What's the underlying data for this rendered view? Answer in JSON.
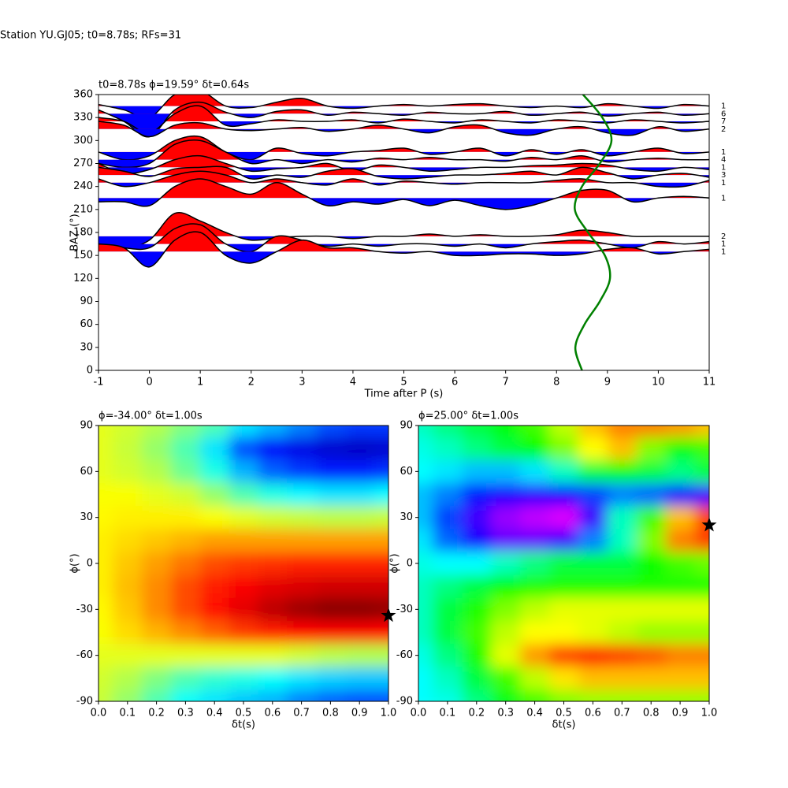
{
  "suptitle": "Station YU.GJ05; t0=8.78s; RFs=31",
  "chart_data": [
    {
      "type": "wiggle",
      "title": "t0=8.78s ϕ=19.59° δt=0.64s",
      "xlabel": "Time after P (s)",
      "ylabel": "BAZ (°)",
      "xlim": [
        -1,
        11
      ],
      "ylim": [
        0,
        360
      ],
      "xticks": [
        -1,
        0,
        1,
        2,
        3,
        4,
        5,
        6,
        7,
        8,
        9,
        10,
        11
      ],
      "yticks": [
        0,
        30,
        60,
        90,
        120,
        150,
        180,
        210,
        240,
        270,
        300,
        330,
        360
      ],
      "pos_color": "#ff0000",
      "neg_color": "#0000ff",
      "line_color": "#000000",
      "times": [
        -1,
        -0.5,
        0,
        0.5,
        1,
        1.5,
        2,
        2.5,
        3,
        3.5,
        4,
        4.5,
        5,
        5.5,
        6,
        6.5,
        7,
        7.5,
        8,
        8.5,
        9,
        9.5,
        10,
        10.5,
        11
      ],
      "traces": [
        {
          "baz": 345,
          "count": 1,
          "values": [
            2,
            -5,
            -15,
            15,
            20,
            0,
            -2,
            5,
            10,
            0,
            -3,
            0,
            2,
            0,
            2,
            3,
            0,
            -2,
            0,
            -2,
            3,
            0,
            -3,
            2,
            0
          ]
        },
        {
          "baz": 335,
          "count": 6,
          "values": [
            5,
            -10,
            -30,
            5,
            15,
            2,
            -5,
            3,
            5,
            -2,
            2,
            0,
            -2,
            2,
            0,
            0,
            3,
            -2,
            0,
            2,
            -3,
            0,
            2,
            -2,
            0
          ]
        },
        {
          "baz": 325,
          "count": 7,
          "values": [
            5,
            0,
            -15,
            10,
            20,
            -5,
            -3,
            2,
            0,
            0,
            2,
            -2,
            3,
            0,
            -2,
            2,
            0,
            -2,
            2,
            0,
            -2,
            2,
            0,
            -2,
            0
          ]
        },
        {
          "baz": 315,
          "count": 2,
          "values": [
            10,
            5,
            -10,
            5,
            8,
            0,
            -2,
            0,
            2,
            -3,
            0,
            5,
            0,
            -5,
            3,
            5,
            -5,
            -8,
            0,
            3,
            -5,
            -8,
            3,
            -3,
            0
          ]
        },
        {
          "baz": 285,
          "count": 1,
          "values": [
            0,
            -10,
            -5,
            15,
            20,
            0,
            -10,
            5,
            -2,
            -5,
            0,
            2,
            5,
            -3,
            0,
            5,
            -5,
            3,
            -3,
            3,
            -5,
            0,
            5,
            -2,
            0
          ]
        },
        {
          "baz": 275,
          "count": 4,
          "values": [
            -5,
            -10,
            -5,
            20,
            25,
            10,
            -5,
            0,
            -5,
            0,
            -3,
            2,
            0,
            3,
            0,
            0,
            -2,
            3,
            0,
            5,
            -3,
            0,
            2,
            0,
            0
          ]
        },
        {
          "baz": 265,
          "count": 1,
          "values": [
            5,
            -8,
            -3,
            10,
            15,
            5,
            -5,
            -2,
            0,
            5,
            -5,
            3,
            0,
            -5,
            -3,
            0,
            0,
            2,
            3,
            5,
            3,
            -3,
            -5,
            0,
            -3
          ]
        },
        {
          "baz": 255,
          "count": 3,
          "values": [
            10,
            5,
            -2,
            8,
            10,
            10,
            -5,
            0,
            -3,
            5,
            8,
            -2,
            -5,
            -3,
            0,
            0,
            2,
            5,
            0,
            10,
            3,
            -5,
            0,
            2,
            -3
          ]
        },
        {
          "baz": 245,
          "count": 1,
          "values": [
            5,
            -5,
            0,
            10,
            15,
            10,
            0,
            5,
            0,
            -3,
            5,
            -3,
            2,
            0,
            -2,
            0,
            0,
            0,
            3,
            5,
            0,
            0,
            -5,
            -5,
            3
          ]
        },
        {
          "baz": 225,
          "count": 1,
          "values": [
            -5,
            -5,
            -10,
            15,
            25,
            15,
            5,
            20,
            5,
            -10,
            -5,
            -8,
            -2,
            -10,
            -3,
            -10,
            -15,
            -10,
            0,
            10,
            10,
            -5,
            0,
            2,
            0
          ]
        },
        {
          "baz": 175,
          "count": 2,
          "values": [
            -10,
            -15,
            -5,
            30,
            20,
            5,
            -5,
            -2,
            0,
            0,
            -3,
            0,
            0,
            3,
            0,
            2,
            0,
            0,
            2,
            8,
            5,
            0,
            0,
            0,
            0
          ]
        },
        {
          "baz": 165,
          "count": 1,
          "values": [
            0,
            -5,
            -5,
            20,
            25,
            0,
            -10,
            10,
            5,
            -3,
            0,
            -3,
            0,
            0,
            -3,
            0,
            -5,
            0,
            3,
            5,
            0,
            -5,
            3,
            0,
            3
          ]
        },
        {
          "baz": 155,
          "count": 1,
          "values": [
            10,
            5,
            -20,
            15,
            25,
            -5,
            -15,
            0,
            15,
            5,
            5,
            0,
            -2,
            0,
            -5,
            -5,
            -3,
            -3,
            -5,
            -3,
            3,
            5,
            -3,
            0,
            3
          ]
        }
      ],
      "curve": {
        "color": "#008000",
        "time": [
          8.5,
          8.37,
          8.55,
          8.85,
          9.05,
          8.95,
          8.62,
          8.36,
          8.5,
          8.85,
          9.08,
          8.9,
          8.52
        ],
        "baz": [
          0,
          30,
          60,
          90,
          120,
          150,
          180,
          210,
          240,
          270,
          300,
          330,
          360
        ]
      }
    },
    {
      "type": "heatmap",
      "title": "ϕ=-34.00° δt=1.00s",
      "xlabel": "δt(s)",
      "ylabel": "ϕ(°)",
      "colormap": "jet",
      "xlim": [
        0,
        1
      ],
      "ylim": [
        -90,
        90
      ],
      "xticks": [
        {
          "value": 0,
          "label": "0.0"
        },
        0.1,
        0.2,
        0.3,
        0.4,
        0.5,
        0.6,
        0.7,
        0.8,
        0.9,
        {
          "value": 1,
          "label": "1.0"
        }
      ],
      "yticks": [
        -90,
        -60,
        -30,
        0,
        30,
        60,
        90
      ],
      "x": [
        0,
        0.1,
        0.2,
        0.3,
        0.4,
        0.5,
        0.6,
        0.7,
        0.8,
        0.9,
        1
      ],
      "y": [
        90,
        75,
        60,
        45,
        30,
        15,
        0,
        -15,
        -30,
        -45,
        -60,
        -75,
        -90
      ],
      "z": [
        [
          0.6,
          0.58,
          0.55,
          0.5,
          0.45,
          0.35,
          0.3,
          0.25,
          0.2,
          0.18,
          0.18
        ],
        [
          0.6,
          0.57,
          0.52,
          0.45,
          0.35,
          0.2,
          0.12,
          0.1,
          0.08,
          0.07,
          0.08
        ],
        [
          0.6,
          0.58,
          0.55,
          0.48,
          0.4,
          0.3,
          0.22,
          0.18,
          0.15,
          0.15,
          0.17
        ],
        [
          0.62,
          0.62,
          0.6,
          0.58,
          0.52,
          0.45,
          0.4,
          0.37,
          0.35,
          0.35,
          0.37
        ],
        [
          0.63,
          0.64,
          0.64,
          0.64,
          0.62,
          0.6,
          0.58,
          0.57,
          0.56,
          0.56,
          0.57
        ],
        [
          0.64,
          0.66,
          0.68,
          0.7,
          0.72,
          0.72,
          0.72,
          0.72,
          0.72,
          0.72,
          0.72
        ],
        [
          0.64,
          0.68,
          0.72,
          0.76,
          0.8,
          0.82,
          0.83,
          0.84,
          0.84,
          0.84,
          0.84
        ],
        [
          0.64,
          0.69,
          0.74,
          0.8,
          0.85,
          0.88,
          0.9,
          0.91,
          0.92,
          0.92,
          0.92
        ],
        [
          0.63,
          0.68,
          0.74,
          0.8,
          0.86,
          0.9,
          0.94,
          0.97,
          0.99,
          0.99,
          0.98
        ],
        [
          0.62,
          0.66,
          0.7,
          0.74,
          0.78,
          0.82,
          0.85,
          0.87,
          0.88,
          0.88,
          0.87
        ],
        [
          0.6,
          0.6,
          0.6,
          0.6,
          0.6,
          0.6,
          0.6,
          0.58,
          0.56,
          0.55,
          0.55
        ],
        [
          0.58,
          0.55,
          0.5,
          0.45,
          0.42,
          0.4,
          0.38,
          0.35,
          0.33,
          0.32,
          0.32
        ],
        [
          0.57,
          0.52,
          0.45,
          0.38,
          0.35,
          0.32,
          0.3,
          0.25,
          0.22,
          0.2,
          0.2
        ]
      ],
      "star": {
        "x": 1,
        "y": -34
      }
    },
    {
      "type": "heatmap",
      "title": "ϕ=25.00° δt=1.00s",
      "xlabel": "δt(s)",
      "ylabel": "ϕ(°)",
      "colormap": "hsv",
      "xlim": [
        0,
        1
      ],
      "ylim": [
        -90,
        90
      ],
      "xticks": [
        {
          "value": 0,
          "label": "0.0"
        },
        0.1,
        0.2,
        0.3,
        0.4,
        0.5,
        0.6,
        0.7,
        0.8,
        0.9,
        {
          "value": 1,
          "label": "1.0"
        }
      ],
      "yticks": [
        -90,
        -60,
        -30,
        0,
        30,
        60,
        90
      ],
      "x": [
        0,
        0.1,
        0.2,
        0.3,
        0.4,
        0.5,
        0.6,
        0.7,
        0.8,
        0.9,
        1
      ],
      "y": [
        90,
        75,
        60,
        45,
        30,
        15,
        0,
        -15,
        -30,
        -45,
        -60,
        -75,
        -90
      ],
      "z": [
        [
          0.45,
          0.5,
          0.55,
          0.6,
          0.65,
          0.75,
          0.85,
          0.9,
          0.9,
          0.88,
          0.85
        ],
        [
          0.42,
          0.45,
          0.5,
          0.55,
          0.6,
          0.7,
          0.8,
          0.85,
          0.7,
          0.6,
          0.65
        ],
        [
          0.4,
          0.38,
          0.35,
          0.35,
          0.38,
          0.45,
          0.55,
          0.6,
          0.55,
          0.5,
          0.55
        ],
        [
          0.35,
          0.3,
          0.22,
          0.18,
          0.17,
          0.2,
          0.25,
          0.3,
          0.28,
          0.2,
          0.15
        ],
        [
          0.35,
          0.25,
          0.15,
          0.08,
          0.05,
          0.03,
          0.15,
          0.45,
          0.65,
          0.85,
          0.95
        ],
        [
          0.38,
          0.28,
          0.18,
          0.12,
          0.12,
          0.15,
          0.3,
          0.45,
          0.7,
          0.9,
          0.95
        ],
        [
          0.42,
          0.4,
          0.4,
          0.45,
          0.5,
          0.55,
          0.55,
          0.55,
          0.6,
          0.65,
          0.68
        ],
        [
          0.45,
          0.5,
          0.55,
          0.6,
          0.62,
          0.62,
          0.62,
          0.62,
          0.62,
          0.62,
          0.62
        ],
        [
          0.45,
          0.55,
          0.62,
          0.7,
          0.75,
          0.78,
          0.78,
          0.78,
          0.78,
          0.78,
          0.78
        ],
        [
          0.45,
          0.55,
          0.65,
          0.75,
          0.8,
          0.8,
          0.78,
          0.75,
          0.72,
          0.72,
          0.72
        ],
        [
          0.42,
          0.5,
          0.62,
          0.78,
          0.88,
          0.95,
          0.97,
          0.95,
          0.93,
          0.9,
          0.9
        ],
        [
          0.4,
          0.45,
          0.55,
          0.65,
          0.75,
          0.82,
          0.85,
          0.85,
          0.85,
          0.85,
          0.85
        ],
        [
          0.4,
          0.42,
          0.5,
          0.58,
          0.65,
          0.7,
          0.72,
          0.72,
          0.72,
          0.72,
          0.72
        ]
      ],
      "star": {
        "x": 1,
        "y": 25
      }
    }
  ]
}
